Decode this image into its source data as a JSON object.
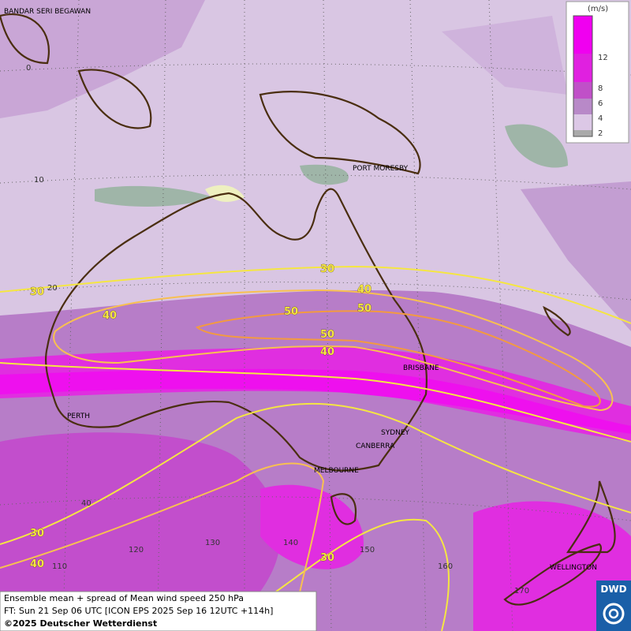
{
  "cities": [
    "BANDAR SERI BEGAWAN",
    "PORT MORESBY",
    "BRISBANE",
    "PERTH",
    "SYDNEY",
    "CANBERRA",
    "MELBOURNE",
    "WELLINGTON"
  ],
  "contour_labels": [
    "30",
    "30",
    "30",
    "30",
    "40",
    "40",
    "40",
    "40",
    "50",
    "50",
    "50"
  ],
  "grid_labels": [
    "0",
    "10",
    "20",
    "40",
    "110",
    "120",
    "130",
    "140",
    "150",
    "160",
    "170"
  ],
  "legend": {
    "unit": "(m/s)",
    "ticks": [
      "12",
      "8",
      "6",
      "4",
      "2"
    ]
  },
  "footer": {
    "lines": [
      "Ensemble mean + spread of Mean wind speed 250 hPa",
      "FT: Sun 21 Sep 06 UTC [ICON EPS 2025 Sep 16 12UTC +114h]",
      "©2025 Deutscher Wetterdienst"
    ]
  },
  "logo": "DWD"
}
